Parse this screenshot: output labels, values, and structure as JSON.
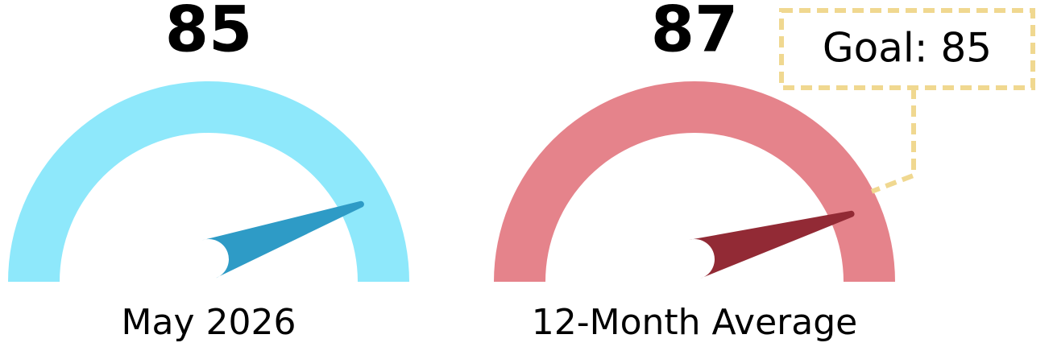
{
  "chart_data": [
    {
      "type": "gauge",
      "value": 85,
      "label": "May 2026",
      "ylim": [
        0,
        100
      ],
      "color": "#8ee8fb",
      "needle_color": "#2e9bc6"
    },
    {
      "type": "gauge",
      "value": 87,
      "label": "12-Month Average",
      "ylim": [
        0,
        100
      ],
      "color": "#e5838b",
      "needle_color": "#922a35",
      "goal": {
        "value": 85,
        "label": "Goal: 85"
      },
      "goal_color": "#f0d890"
    }
  ]
}
